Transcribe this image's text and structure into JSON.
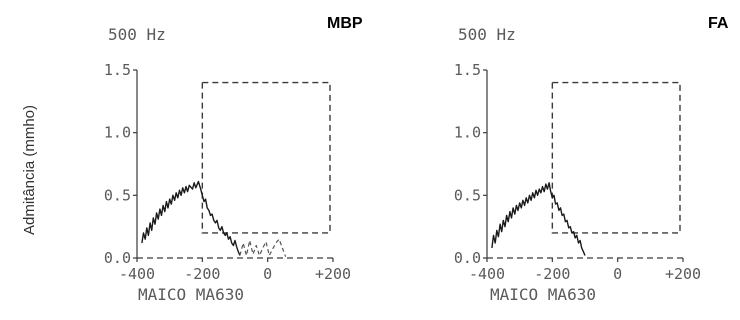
{
  "y_axis_label": "Admitância (mmho)",
  "chart_data": [
    {
      "type": "line",
      "frequency_label": "500 Hz",
      "panel_label": "MBP",
      "device_label": "MAICO MA630",
      "x_ticks": [
        "-400",
        "-200",
        "0",
        "+200"
      ],
      "y_ticks": [
        "0.0",
        "0.5",
        "1.0",
        "1.5"
      ],
      "xlim": [
        -400,
        200
      ],
      "ylim": [
        0.0,
        1.5
      ],
      "normal_box": {
        "x": [
          -200,
          200
        ],
        "y": [
          0.2,
          1.4
        ]
      },
      "series": [
        {
          "points": [
            [
              -385,
              0.12
            ],
            [
              -380,
              0.2
            ],
            [
              -375,
              0.15
            ],
            [
              -370,
              0.24
            ],
            [
              -365,
              0.18
            ],
            [
              -360,
              0.28
            ],
            [
              -355,
              0.22
            ],
            [
              -350,
              0.32
            ],
            [
              -345,
              0.27
            ],
            [
              -340,
              0.36
            ],
            [
              -335,
              0.31
            ],
            [
              -330,
              0.39
            ],
            [
              -325,
              0.34
            ],
            [
              -320,
              0.42
            ],
            [
              -315,
              0.37
            ],
            [
              -310,
              0.45
            ],
            [
              -305,
              0.4
            ],
            [
              -300,
              0.47
            ],
            [
              -295,
              0.43
            ],
            [
              -290,
              0.5
            ],
            [
              -285,
              0.46
            ],
            [
              -280,
              0.52
            ],
            [
              -275,
              0.48
            ],
            [
              -270,
              0.54
            ],
            [
              -265,
              0.5
            ],
            [
              -260,
              0.56
            ],
            [
              -255,
              0.52
            ],
            [
              -250,
              0.57
            ],
            [
              -245,
              0.53
            ],
            [
              -240,
              0.58
            ],
            [
              -230,
              0.55
            ],
            [
              -225,
              0.6
            ],
            [
              -220,
              0.56
            ],
            [
              -212,
              0.61
            ],
            [
              -205,
              0.55
            ],
            [
              -200,
              0.5
            ],
            [
              -195,
              0.45
            ],
            [
              -190,
              0.47
            ],
            [
              -185,
              0.4
            ],
            [
              -180,
              0.38
            ],
            [
              -175,
              0.34
            ],
            [
              -170,
              0.35
            ],
            [
              -165,
              0.3
            ],
            [
              -160,
              0.28
            ],
            [
              -155,
              0.3
            ],
            [
              -150,
              0.24
            ],
            [
              -145,
              0.22
            ],
            [
              -140,
              0.25
            ],
            [
              -135,
              0.2
            ],
            [
              -130,
              0.18
            ],
            [
              -125,
              0.2
            ],
            [
              -120,
              0.15
            ],
            [
              -115,
              0.17
            ],
            [
              -110,
              0.12
            ],
            [
              -105,
              0.1
            ],
            [
              -100,
              0.14
            ],
            [
              -95,
              0.09
            ],
            [
              -90,
              0.05
            ],
            [
              -85,
              0.02
            ]
          ]
        },
        {
          "dashed": true,
          "points": [
            [
              -85,
              0.02
            ],
            [
              -75,
              0.12
            ],
            [
              -65,
              0.02
            ],
            [
              -55,
              0.14
            ],
            [
              -45,
              0.03
            ],
            [
              -35,
              0.1
            ],
            [
              -25,
              0.02
            ],
            [
              -15,
              0.08
            ],
            [
              -5,
              0.13
            ],
            [
              5,
              0.02
            ],
            [
              25,
              0.12
            ],
            [
              35,
              0.15
            ],
            [
              45,
              0.08
            ],
            [
              55,
              0.01
            ]
          ]
        }
      ]
    },
    {
      "type": "line",
      "frequency_label": "500 Hz",
      "panel_label": "FA",
      "device_label": "MAICO MA630",
      "x_ticks": [
        "-400",
        "-200",
        "0",
        "+200"
      ],
      "y_ticks": [
        "0.0",
        "0.5",
        "1.0",
        "1.5"
      ],
      "xlim": [
        -400,
        200
      ],
      "ylim": [
        0.0,
        1.5
      ],
      "normal_box": {
        "x": [
          -200,
          200
        ],
        "y": [
          0.2,
          1.4
        ]
      },
      "series": [
        {
          "points": [
            [
              -385,
              0.08
            ],
            [
              -380,
              0.18
            ],
            [
              -375,
              0.12
            ],
            [
              -370,
              0.22
            ],
            [
              -365,
              0.17
            ],
            [
              -360,
              0.27
            ],
            [
              -355,
              0.21
            ],
            [
              -350,
              0.3
            ],
            [
              -345,
              0.25
            ],
            [
              -340,
              0.34
            ],
            [
              -335,
              0.29
            ],
            [
              -330,
              0.37
            ],
            [
              -325,
              0.32
            ],
            [
              -320,
              0.4
            ],
            [
              -315,
              0.35
            ],
            [
              -310,
              0.42
            ],
            [
              -305,
              0.38
            ],
            [
              -300,
              0.44
            ],
            [
              -295,
              0.4
            ],
            [
              -290,
              0.46
            ],
            [
              -285,
              0.42
            ],
            [
              -280,
              0.48
            ],
            [
              -275,
              0.44
            ],
            [
              -270,
              0.5
            ],
            [
              -265,
              0.46
            ],
            [
              -260,
              0.52
            ],
            [
              -255,
              0.48
            ],
            [
              -250,
              0.54
            ],
            [
              -245,
              0.5
            ],
            [
              -240,
              0.55
            ],
            [
              -235,
              0.52
            ],
            [
              -230,
              0.57
            ],
            [
              -225,
              0.53
            ],
            [
              -220,
              0.59
            ],
            [
              -215,
              0.55
            ],
            [
              -210,
              0.6
            ],
            [
              -205,
              0.53
            ],
            [
              -200,
              0.48
            ],
            [
              -195,
              0.5
            ],
            [
              -190,
              0.43
            ],
            [
              -185,
              0.44
            ],
            [
              -180,
              0.38
            ],
            [
              -175,
              0.4
            ],
            [
              -170,
              0.34
            ],
            [
              -165,
              0.35
            ],
            [
              -160,
              0.29
            ],
            [
              -155,
              0.3
            ],
            [
              -150,
              0.24
            ],
            [
              -145,
              0.25
            ],
            [
              -140,
              0.2
            ],
            [
              -135,
              0.21
            ],
            [
              -130,
              0.16
            ],
            [
              -125,
              0.18
            ],
            [
              -120,
              0.12
            ],
            [
              -115,
              0.14
            ],
            [
              -110,
              0.08
            ],
            [
              -105,
              0.05
            ],
            [
              -100,
              0.02
            ]
          ]
        }
      ]
    }
  ]
}
